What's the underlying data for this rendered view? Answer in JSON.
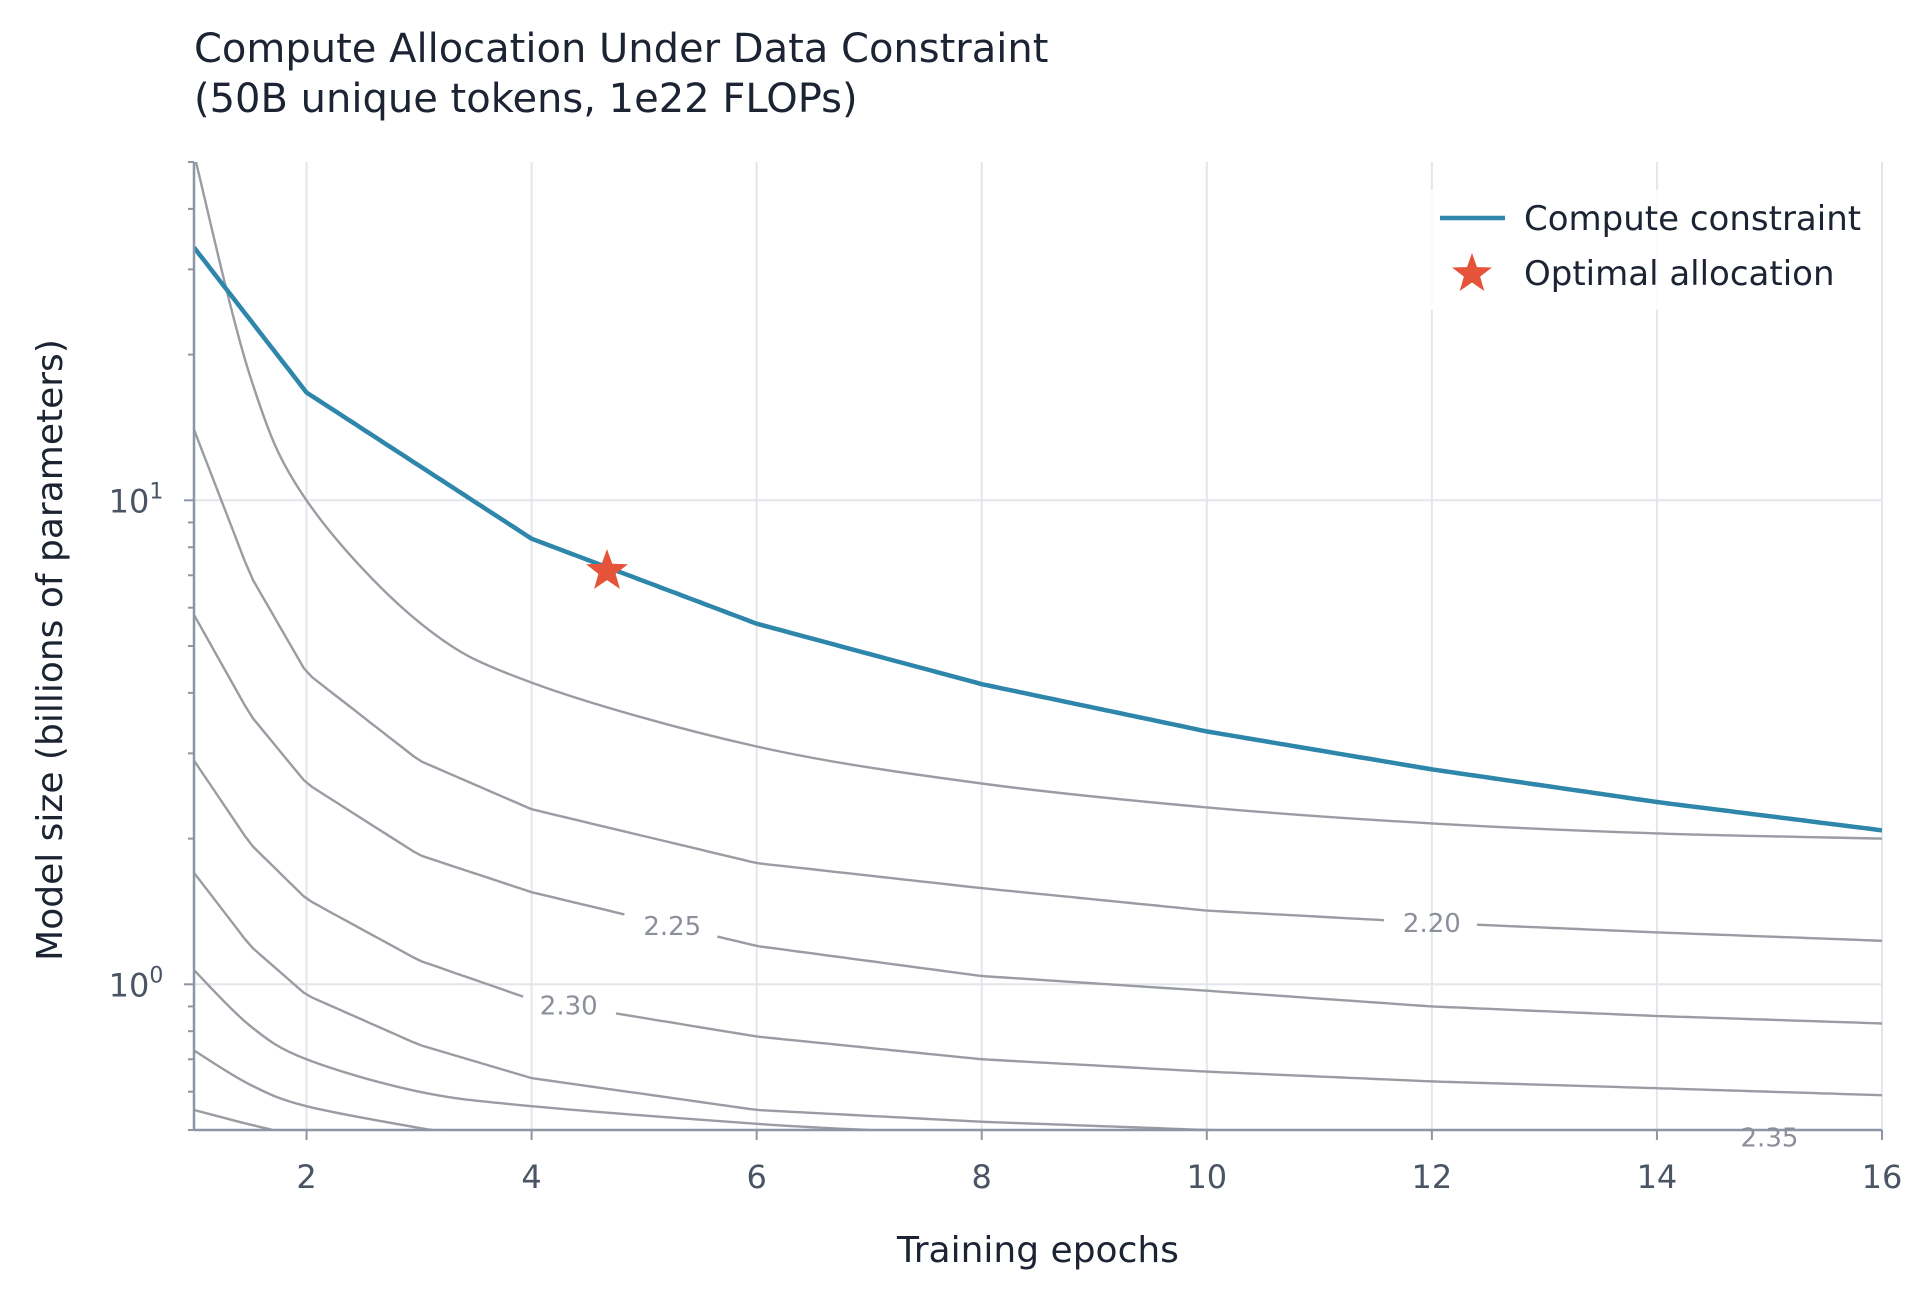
{
  "chart_data": {
    "type": "line",
    "title": "Compute Allocation Under Data Constraint",
    "subtitle": "(50B unique tokens, 1e22 FLOPs)",
    "xlabel": "Training epochs",
    "ylabel": "Model size (billions of parameters)",
    "xlim": [
      1,
      16
    ],
    "ylim": [
      0.5,
      50
    ],
    "yscale": "log",
    "grid": true,
    "legend_position": "top-right",
    "x_ticks": [
      "2",
      "4",
      "6",
      "8",
      "10",
      "12",
      "14",
      "16"
    ],
    "y_ticks": [
      {
        "value": 1,
        "base": "10",
        "exp": "0"
      },
      {
        "value": 10,
        "base": "10",
        "exp": "1"
      }
    ],
    "series": [
      {
        "name": "Compute constraint",
        "color": "#2e86ab",
        "function": "N = 33.3 / epochs",
        "x": [
          1,
          2,
          4,
          6,
          8,
          10,
          12,
          14,
          16
        ],
        "y": [
          33.3,
          16.7,
          8.33,
          5.56,
          4.17,
          3.33,
          2.78,
          2.38,
          2.08
        ]
      }
    ],
    "optimal_point": {
      "name": "Optimal allocation",
      "x": 4.67,
      "y": 7.14,
      "color": "#e4533a"
    },
    "contours": {
      "color": "#9a9ca3",
      "levels": [
        {
          "x": [
            1.0,
            1.5,
            2.0,
            3.0,
            4.0,
            6.0,
            8.0,
            10.0,
            12.0,
            14.0,
            16.0
          ],
          "y": [
            52.0,
            18.0,
            10.0,
            5.6,
            4.2,
            3.1,
            2.6,
            2.32,
            2.15,
            2.05,
            2.0
          ]
        },
        {
          "label": "2.20",
          "label_x": 12.0,
          "x": [
            1.0,
            1.5,
            2.0,
            3.0,
            4.0,
            6.0,
            8.0,
            10.0,
            12.0,
            14.0,
            16.0
          ],
          "y": [
            14.0,
            7.0,
            4.4,
            2.9,
            2.3,
            1.78,
            1.58,
            1.42,
            1.34,
            1.28,
            1.23
          ]
        },
        {
          "label": "2.25",
          "label_x": 5.25,
          "x": [
            1.0,
            1.5,
            2.0,
            3.0,
            4.0,
            6.0,
            8.0,
            10.0,
            12.0,
            14.0,
            16.0
          ],
          "y": [
            5.8,
            3.6,
            2.6,
            1.85,
            1.55,
            1.2,
            1.04,
            0.97,
            0.9,
            0.86,
            0.83
          ]
        },
        {
          "label": "2.30",
          "label_x": 4.33,
          "x": [
            1.0,
            1.5,
            2.0,
            3.0,
            4.0,
            6.0,
            8.0,
            10.0,
            12.0,
            14.0,
            16.0
          ],
          "y": [
            2.9,
            1.95,
            1.5,
            1.12,
            0.93,
            0.78,
            0.7,
            0.66,
            0.63,
            0.61,
            0.59
          ]
        },
        {
          "label": "2.35",
          "label_x": 15.0,
          "x": [
            1.0,
            1.5,
            2.0,
            3.0,
            4.0,
            6.0,
            8.0,
            10.0,
            12.0,
            14.0,
            16.0
          ],
          "y": [
            1.7,
            1.2,
            0.95,
            0.75,
            0.64,
            0.55,
            0.52,
            0.5,
            0.49,
            0.485,
            0.48
          ]
        },
        {
          "x": [
            1.0,
            1.5,
            2.0,
            3.0,
            4.0,
            6.0,
            7.0
          ],
          "y": [
            1.07,
            0.82,
            0.7,
            0.6,
            0.56,
            0.515,
            0.5
          ]
        },
        {
          "x": [
            1.0,
            1.5,
            2.0,
            3.0,
            3.2
          ],
          "y": [
            0.73,
            0.62,
            0.56,
            0.505,
            0.5
          ]
        },
        {
          "x": [
            1.0,
            1.4,
            1.7
          ],
          "y": [
            0.55,
            0.52,
            0.5
          ]
        }
      ]
    }
  }
}
